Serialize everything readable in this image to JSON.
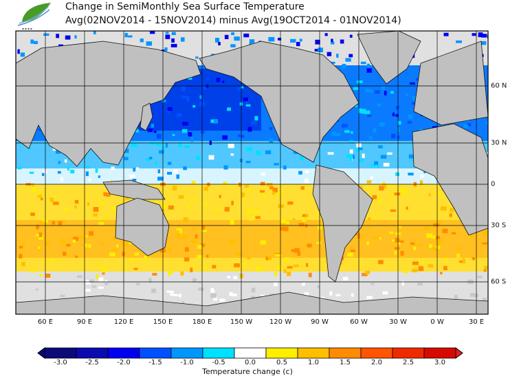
{
  "header": {
    "title_line1": "Change in SemiMonthly Sea Surface Temperature",
    "title_line2": "Avg(02NOV2014 - 15NOV2014) minus Avg(19OCT2014 - 01NOV2014)",
    "logo_icon": "leaf-wave-logo"
  },
  "map": {
    "lon_labels": [
      "60 E",
      "90 E",
      "120 E",
      "150 E",
      "180 E",
      "150 W",
      "120 W",
      "90 W",
      "60 W",
      "30 W",
      "0 W",
      "30 E"
    ],
    "lat_labels": [
      "60 N",
      "30 N",
      "0",
      "30 S",
      "60 S"
    ],
    "land_color": "#c0c0c0",
    "missing_color": "#e0e0e0"
  },
  "legend": {
    "title": "Temperature change  (c)",
    "labels": [
      "-3.0",
      "-2.5",
      "-2.0",
      "-1.5",
      "-1.0",
      "-0.5",
      "0.0",
      "0.5",
      "1.0",
      "1.5",
      "2.0",
      "2.5",
      "3.0"
    ],
    "colors": [
      "#0a0a78",
      "#0a0ab0",
      "#0000f0",
      "#0050ff",
      "#0096ff",
      "#00e0ff",
      "#ffffff",
      "#ffee00",
      "#ffbf00",
      "#ff8c00",
      "#ff5500",
      "#f02a00",
      "#d60a00"
    ],
    "under_color": "#0a0a78",
    "over_color": "#e02020"
  }
}
